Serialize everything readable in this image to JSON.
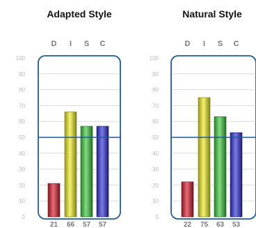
{
  "chart_data": [
    {
      "type": "bar",
      "title": "Adapted Style",
      "categories": [
        "D",
        "I",
        "S",
        "C"
      ],
      "values": [
        21,
        66,
        57,
        57
      ],
      "value_labels": [
        "21",
        "66",
        "57",
        "57"
      ],
      "yticks": [
        "0",
        "10",
        "20",
        "30",
        "40",
        "50",
        "60",
        "70",
        "80",
        "90",
        "100"
      ],
      "ylim": [
        0,
        100
      ],
      "midline": 50,
      "colors": [
        "#d81f2d",
        "#ecec23",
        "#3fc73f",
        "#3232d8"
      ],
      "frame_color": "#1f5a9a",
      "grid": true
    },
    {
      "type": "bar",
      "title": "Natural Style",
      "categories": [
        "D",
        "I",
        "S",
        "C"
      ],
      "values": [
        22,
        75,
        63,
        53
      ],
      "value_labels": [
        "22",
        "75",
        "63",
        "53"
      ],
      "yticks": [
        "0",
        "10",
        "20",
        "30",
        "40",
        "50",
        "60",
        "70",
        "80",
        "90",
        "100"
      ],
      "ylim": [
        0,
        100
      ],
      "midline": 50,
      "colors": [
        "#d81f2d",
        "#ecec23",
        "#3fc73f",
        "#3232d8"
      ],
      "frame_color": "#1f5a9a",
      "grid": true
    }
  ]
}
